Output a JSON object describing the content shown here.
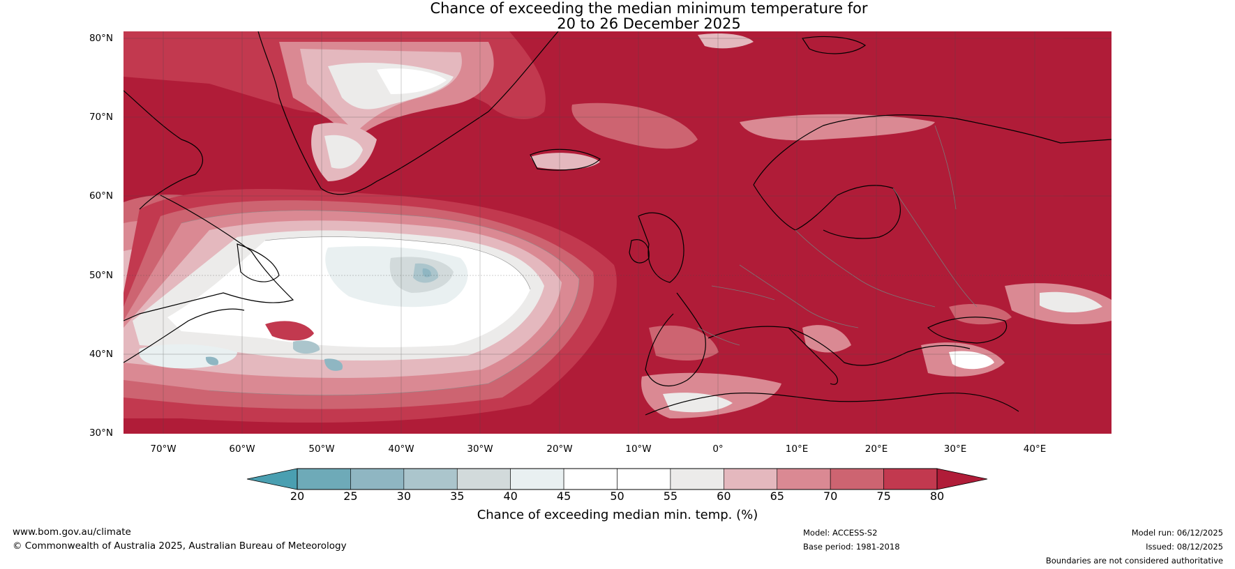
{
  "title": {
    "line1": "Chance of exceeding the median minimum temperature for",
    "line2": "20 to 26 December 2025"
  },
  "map": {
    "lat_labels": [
      "80°N",
      "70°N",
      "60°N",
      "50°N",
      "40°N",
      "30°N"
    ],
    "lon_labels": [
      "70°W",
      "60°W",
      "50°W",
      "40°W",
      "30°W",
      "20°W",
      "10°W",
      "0°",
      "10°E",
      "20°E",
      "30°E",
      "40°E"
    ],
    "colors": {
      "c80": "#b01c38",
      "c75": "#c2394f",
      "c70": "#cd6471",
      "c65": "#da8993",
      "c60": "#e4b8be",
      "c55": "#ecebea",
      "c50": "#ffffff",
      "c45": "#e9f0f1",
      "c40": "#d2dadb",
      "c35": "#abc5cc",
      "c30": "#8fb6c2",
      "c25": "#6eaab8",
      "c20": "#4a9fb1",
      "coast": "#000000",
      "border": "#7a7a7a"
    }
  },
  "colorbar": {
    "ticks": [
      "20",
      "25",
      "30",
      "35",
      "40",
      "45",
      "50",
      "55",
      "60",
      "65",
      "70",
      "75",
      "80"
    ],
    "label": "Chance of exceeding median min. temp. (%)"
  },
  "footer": {
    "website": "www.bom.gov.au/climate",
    "copyright": "© Commonwealth of Australia 2025, Australian Bureau of Meteorology",
    "model": "Model: ACCESS-S2",
    "base_period": "Base period: 1981-2018",
    "model_run": "Model run: 06/12/2025",
    "issued": "Issued: 08/12/2025",
    "disclaimer": "Boundaries are not considered authoritative"
  }
}
